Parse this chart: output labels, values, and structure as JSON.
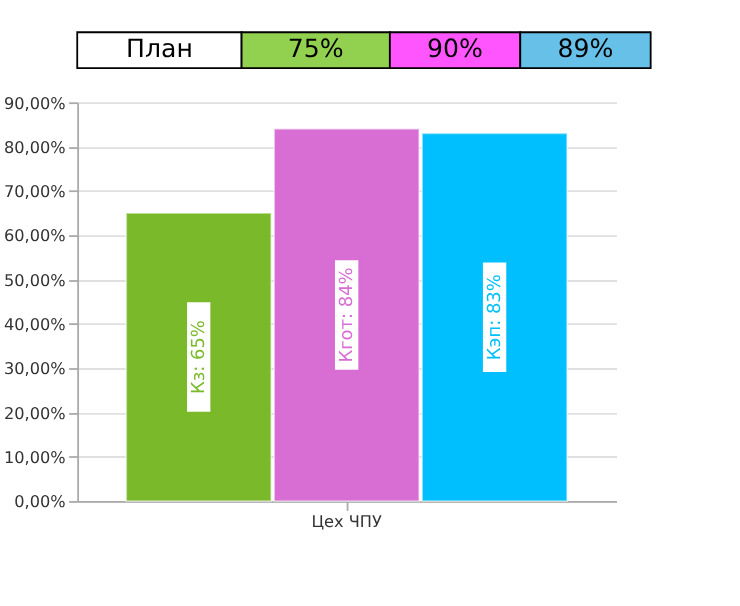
{
  "chart_data": {
    "type": "bar",
    "annotations": [
      "План",
      "75%",
      "90%",
      "89%"
    ],
    "categories": [
      "Цех ЧПУ"
    ],
    "series": [
      {
        "color": "#7ab929",
        "values": [
          65
        ],
        "value_labels": [
          "Кз: 65%"
        ]
      },
      {
        "color": "#d86dd4",
        "values": [
          84
        ],
        "value_labels": [
          "Кгот: 84%"
        ]
      },
      {
        "color": "#00bfff",
        "values": [
          83
        ],
        "value_labels": [
          "Кэп: 83%"
        ]
      }
    ],
    "ylim": [
      0,
      90
    ],
    "yticks": [
      {
        "value": 0,
        "label": "0,00%"
      },
      {
        "value": 10,
        "label": "10,00%"
      },
      {
        "value": 20,
        "label": "20,00%"
      },
      {
        "value": 30,
        "label": "30,00%"
      },
      {
        "value": 40,
        "label": "40,00%"
      },
      {
        "value": 50,
        "label": "50,00%"
      },
      {
        "value": 60,
        "label": "60,00%"
      },
      {
        "value": 70,
        "label": "70,00%"
      },
      {
        "value": 80,
        "label": "80,00%"
      },
      {
        "value": 90,
        "label": "90,00%"
      }
    ],
    "grid": "y"
  }
}
